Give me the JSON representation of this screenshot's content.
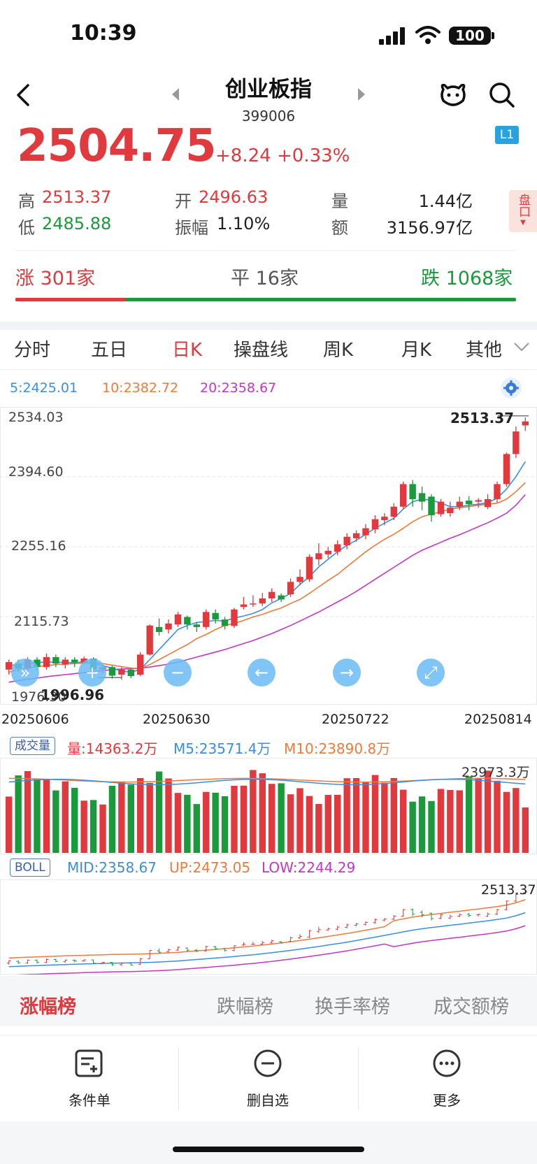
{
  "status_bar": {
    "time": "10:39",
    "battery": "100"
  },
  "header": {
    "title": "创业板指",
    "code": "399006",
    "level_badge": "L1"
  },
  "quote": {
    "price": "2504.75",
    "change": "+8.24",
    "change_pct": "+0.33%",
    "high_label": "高",
    "high": "2513.37",
    "low_label": "低",
    "low": "2485.88",
    "open_label": "开",
    "open": "2496.63",
    "amplitude_label": "振幅",
    "amplitude": "1.10%",
    "volume_label": "量",
    "volume": "1.44亿",
    "amount_label": "额",
    "amount": "3156.97亿",
    "pan_label": "盘口"
  },
  "breadth": {
    "up": "涨 301家",
    "flat": "平 16家",
    "down": "跌 1068家",
    "up_ratio": 0.22
  },
  "kline_tabs": [
    "分时",
    "五日",
    "日K",
    "操盘线",
    "周K",
    "月K",
    "其他"
  ],
  "active_tab": "日K",
  "ma_legend": {
    "ma5": "5:2425.01",
    "ma10": "10:2382.72",
    "ma20": "20:2358.67"
  },
  "colors": {
    "up": "#e0393e",
    "down": "#1a9a3a",
    "ma5": "#3a8ee6",
    "ma10": "#f07a3a",
    "ma20": "#c735c7"
  },
  "chart_data": {
    "type": "candlestick",
    "y_ticks": [
      "2534.03",
      "2394.60",
      "2255.16",
      "2115.73",
      "1976.30"
    ],
    "ylim": [
      1976.3,
      2534.03
    ],
    "x_ticks": [
      "20250606",
      "20250630",
      "20250722",
      "20250814"
    ],
    "max_label": "2513.37",
    "min_label": "1996.96",
    "candles": [
      [
        2010,
        2025,
        2000,
        2030
      ],
      [
        2022,
        2012,
        2005,
        2030
      ],
      [
        2012,
        2030,
        2005,
        2035
      ],
      [
        2030,
        2015,
        2008,
        2035
      ],
      [
        2015,
        2035,
        2010,
        2042
      ],
      [
        2035,
        2022,
        2015,
        2040
      ],
      [
        2020,
        2030,
        2012,
        2035
      ],
      [
        2030,
        2025,
        2015,
        2035
      ],
      [
        2025,
        2032,
        2020,
        2036
      ],
      [
        2032,
        2010,
        2003,
        2035
      ],
      [
        2010,
        2015,
        2002,
        2020
      ],
      [
        2015,
        1998,
        1992,
        2018
      ],
      [
        2000,
        2010,
        1990,
        2015
      ],
      [
        2010,
        1997,
        1993,
        2014
      ],
      [
        2000,
        2040,
        1997,
        2045
      ],
      [
        2040,
        2098,
        2038,
        2100
      ],
      [
        2095,
        2085,
        2078,
        2112
      ],
      [
        2090,
        2102,
        2082,
        2110
      ],
      [
        2100,
        2120,
        2095,
        2125
      ],
      [
        2115,
        2100,
        2090,
        2118
      ],
      [
        2100,
        2095,
        2085,
        2105
      ],
      [
        2095,
        2125,
        2090,
        2130
      ],
      [
        2123,
        2110,
        2102,
        2130
      ],
      [
        2110,
        2097,
        2090,
        2115
      ],
      [
        2097,
        2130,
        2093,
        2133
      ],
      [
        2135,
        2140,
        2130,
        2155
      ],
      [
        2140,
        2142,
        2135,
        2158
      ],
      [
        2142,
        2152,
        2137,
        2163
      ],
      [
        2152,
        2165,
        2145,
        2172
      ],
      [
        2158,
        2150,
        2145,
        2162
      ],
      [
        2160,
        2185,
        2155,
        2192
      ],
      [
        2185,
        2195,
        2178,
        2210
      ],
      [
        2190,
        2235,
        2185,
        2240
      ],
      [
        2230,
        2242,
        2218,
        2262
      ],
      [
        2240,
        2247,
        2232,
        2255
      ],
      [
        2245,
        2260,
        2238,
        2268
      ],
      [
        2258,
        2275,
        2250,
        2282
      ],
      [
        2272,
        2282,
        2265,
        2288
      ],
      [
        2278,
        2292,
        2270,
        2300
      ],
      [
        2290,
        2310,
        2282,
        2318
      ],
      [
        2308,
        2315,
        2298,
        2322
      ],
      [
        2315,
        2335,
        2308,
        2342
      ],
      [
        2335,
        2380,
        2330,
        2385
      ],
      [
        2380,
        2350,
        2335,
        2388
      ],
      [
        2362,
        2345,
        2328,
        2375
      ],
      [
        2355,
        2318,
        2305,
        2360
      ],
      [
        2320,
        2345,
        2315,
        2350
      ],
      [
        2322,
        2333,
        2315,
        2345
      ],
      [
        2335,
        2345,
        2328,
        2355
      ],
      [
        2347,
        2340,
        2328,
        2356
      ],
      [
        2345,
        2348,
        2333,
        2352
      ],
      [
        2334,
        2350,
        2330,
        2360
      ],
      [
        2350,
        2380,
        2343,
        2385
      ],
      [
        2380,
        2440,
        2375,
        2443
      ],
      [
        2440,
        2485,
        2432,
        2495
      ],
      [
        2497,
        2505,
        2486,
        2513
      ]
    ],
    "ma5": [
      2018,
      2020,
      2022,
      2024,
      2025,
      2025,
      2024,
      2024,
      2025,
      2023,
      2018,
      2013,
      2007,
      2005,
      2010,
      2030,
      2050,
      2070,
      2090,
      2098,
      2104,
      2106,
      2108,
      2107,
      2113,
      2117,
      2122,
      2130,
      2143,
      2152,
      2162,
      2180,
      2195,
      2215,
      2230,
      2245,
      2258,
      2268,
      2280,
      2292,
      2302,
      2312,
      2330,
      2345,
      2350,
      2348,
      2342,
      2335,
      2335,
      2338,
      2340,
      2343,
      2352,
      2370,
      2395,
      2425
    ],
    "ma10": [
      2005,
      2010,
      2013,
      2016,
      2018,
      2020,
      2021,
      2022,
      2023,
      2024,
      2022,
      2019,
      2016,
      2013,
      2012,
      2020,
      2030,
      2040,
      2050,
      2060,
      2072,
      2080,
      2090,
      2098,
      2102,
      2108,
      2115,
      2120,
      2127,
      2133,
      2142,
      2150,
      2162,
      2175,
      2188,
      2200,
      2215,
      2230,
      2245,
      2258,
      2270,
      2280,
      2292,
      2305,
      2315,
      2320,
      2325,
      2330,
      2333,
      2335,
      2338,
      2340,
      2342,
      2350,
      2365,
      2383
    ],
    "ma20": [
      1985,
      1988,
      1991,
      1993,
      1996,
      1998,
      2000,
      2002,
      2004,
      2006,
      2008,
      2010,
      2011,
      2012,
      2013,
      2015,
      2018,
      2021,
      2025,
      2030,
      2035,
      2040,
      2045,
      2050,
      2056,
      2062,
      2068,
      2075,
      2082,
      2090,
      2098,
      2107,
      2116,
      2125,
      2135,
      2145,
      2155,
      2166,
      2178,
      2190,
      2202,
      2214,
      2226,
      2238,
      2248,
      2256,
      2264,
      2272,
      2279,
      2287,
      2295,
      2303,
      2312,
      2322,
      2338,
      2359
    ]
  },
  "volume": {
    "tag": "成交量",
    "vol": "量:14363.2万",
    "m5": "M5:23571.4万",
    "m10": "M10:23890.8万",
    "max_label": "23973.3万"
  },
  "boll": {
    "tag": "BOLL",
    "mid": "MID:2358.67",
    "up": "UP:2473.05",
    "low": "LOW:2244.29",
    "max_label": "2513.37"
  },
  "rank_tabs": [
    "涨幅榜",
    "跌幅榜",
    "换手率榜",
    "成交额榜"
  ],
  "bottom_bar": {
    "conditions": "条件单",
    "remove": "删自选",
    "more": "更多"
  }
}
